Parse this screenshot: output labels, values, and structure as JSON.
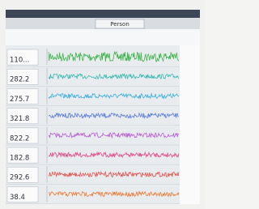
{
  "toolbar": {
    "tab": "Person"
  },
  "channels": [
    {
      "value": "110..."
    },
    {
      "value": "282.2"
    },
    {
      "value": "275.7"
    },
    {
      "value": "321.8"
    },
    {
      "value": "822.2"
    },
    {
      "value": "182.8"
    },
    {
      "value": "292.6"
    },
    {
      "value": "38.4"
    }
  ]
}
